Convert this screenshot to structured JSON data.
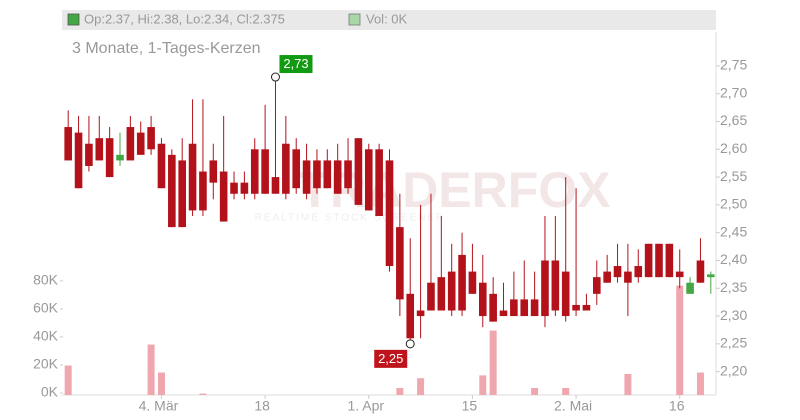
{
  "chart_data": {
    "type": "candlestick",
    "title": "3 Monate, 1-Tages-Kerzen",
    "legend_ohlc": "Op:2.37, Hi:2.38, Lo:2.34, Cl:2.375",
    "legend_volume": "Vol: 0K",
    "watermark": "TRADERFOX",
    "watermark_subtitle": "REALTIME STOCK SCREENER",
    "categories": [
      null,
      null,
      null,
      null,
      null,
      null,
      null,
      null,
      null,
      "4. Mär",
      null,
      null,
      null,
      null,
      null,
      null,
      null,
      null,
      null,
      "18",
      null,
      null,
      null,
      null,
      null,
      null,
      null,
      null,
      null,
      "1. Apr",
      null,
      null,
      null,
      null,
      null,
      null,
      null,
      null,
      null,
      "15",
      null,
      null,
      null,
      null,
      null,
      null,
      null,
      null,
      null,
      "2. Mai",
      null,
      null,
      null,
      null,
      null,
      null,
      null,
      null,
      null,
      "16",
      null,
      null,
      null
    ],
    "open": [
      2.64,
      2.63,
      2.61,
      2.62,
      2.62,
      2.58,
      2.64,
      2.63,
      2.64,
      2.61,
      2.59,
      2.58,
      2.61,
      2.56,
      2.58,
      2.56,
      2.54,
      2.54,
      2.6,
      2.6,
      2.55,
      2.61,
      2.6,
      2.58,
      2.58,
      2.58,
      2.58,
      2.58,
      2.62,
      2.6,
      2.6,
      2.58,
      2.46,
      2.34,
      2.31,
      2.36,
      2.37,
      2.38,
      2.41,
      2.38,
      2.36,
      2.34,
      2.31,
      2.33,
      2.33,
      2.33,
      2.4,
      2.4,
      2.38,
      2.32,
      2.32,
      2.37,
      2.38,
      2.39,
      2.38,
      2.39,
      2.43,
      2.43,
      2.43,
      2.38,
      2.34,
      2.4,
      2.37
    ],
    "high": [
      2.67,
      2.66,
      2.66,
      2.66,
      2.64,
      2.63,
      2.66,
      2.65,
      2.66,
      2.62,
      2.6,
      2.62,
      2.69,
      2.69,
      2.61,
      2.66,
      2.56,
      2.56,
      2.62,
      2.68,
      2.73,
      2.66,
      2.62,
      2.61,
      2.6,
      2.6,
      2.61,
      2.62,
      2.62,
      2.61,
      2.61,
      2.6,
      2.52,
      2.44,
      2.5,
      2.52,
      2.48,
      2.43,
      2.45,
      2.43,
      2.41,
      2.37,
      2.36,
      2.38,
      2.4,
      2.38,
      2.48,
      2.48,
      2.55,
      2.53,
      2.34,
      2.4,
      2.41,
      2.43,
      2.43,
      2.42,
      2.43,
      2.43,
      2.43,
      2.42,
      2.37,
      2.44,
      2.38
    ],
    "low": [
      2.58,
      2.53,
      2.56,
      2.58,
      2.55,
      2.57,
      2.58,
      2.59,
      2.59,
      2.53,
      2.46,
      2.46,
      2.48,
      2.48,
      2.51,
      2.47,
      2.51,
      2.51,
      2.51,
      2.52,
      2.52,
      2.51,
      2.52,
      2.51,
      2.52,
      2.53,
      2.52,
      2.52,
      2.5,
      2.49,
      2.48,
      2.38,
      2.3,
      2.25,
      2.26,
      2.31,
      2.31,
      2.3,
      2.3,
      2.34,
      2.28,
      2.29,
      2.3,
      2.3,
      2.3,
      2.3,
      2.28,
      2.3,
      2.29,
      2.3,
      2.31,
      2.32,
      2.36,
      2.36,
      2.3,
      2.36,
      2.37,
      2.37,
      2.37,
      2.35,
      2.34,
      2.36,
      2.34
    ],
    "close": [
      2.58,
      2.53,
      2.57,
      2.58,
      2.55,
      2.59,
      2.58,
      2.59,
      2.6,
      2.53,
      2.46,
      2.46,
      2.49,
      2.49,
      2.54,
      2.47,
      2.52,
      2.52,
      2.52,
      2.52,
      2.52,
      2.52,
      2.53,
      2.52,
      2.53,
      2.53,
      2.52,
      2.53,
      2.5,
      2.49,
      2.48,
      2.39,
      2.33,
      2.26,
      2.3,
      2.31,
      2.31,
      2.31,
      2.31,
      2.34,
      2.3,
      2.29,
      2.3,
      2.3,
      2.3,
      2.3,
      2.3,
      2.31,
      2.3,
      2.31,
      2.31,
      2.34,
      2.36,
      2.37,
      2.36,
      2.37,
      2.37,
      2.37,
      2.37,
      2.37,
      2.36,
      2.36,
      2.375
    ],
    "volume": [
      21000,
      0,
      0,
      0,
      0,
      0,
      0,
      0,
      36000,
      16000,
      0,
      0,
      0,
      1000,
      0,
      0,
      0,
      0,
      0,
      0,
      0,
      0,
      0,
      0,
      0,
      0,
      0,
      0,
      0,
      0,
      0,
      0,
      5000,
      0,
      12000,
      0,
      0,
      0,
      0,
      0,
      14000,
      46000,
      0,
      0,
      0,
      5000,
      0,
      0,
      5000,
      0,
      0,
      0,
      0,
      0,
      15000,
      0,
      0,
      0,
      0,
      78000,
      0,
      16000,
      0
    ],
    "up_color": "#43a843",
    "down_color": "#b3121b",
    "volume_up_color": "#a8d8a8",
    "volume_down_color": "#f0a6ae",
    "ylim": [
      2.158,
      2.811
    ],
    "yticks": [
      {
        "value": 2.2,
        "label": "2,20"
      },
      {
        "value": 2.25,
        "label": "2,25"
      },
      {
        "value": 2.3,
        "label": "2,30"
      },
      {
        "value": 2.35,
        "label": "2,35"
      },
      {
        "value": 2.4,
        "label": "2,40"
      },
      {
        "value": 2.45,
        "label": "2,45"
      },
      {
        "value": 2.5,
        "label": "2,50"
      },
      {
        "value": 2.55,
        "label": "2,55"
      },
      {
        "value": 2.6,
        "label": "2,60"
      },
      {
        "value": 2.65,
        "label": "2,65"
      },
      {
        "value": 2.7,
        "label": "2,70"
      },
      {
        "value": 2.75,
        "label": "2,75"
      }
    ],
    "y2lim": [
      0,
      259000
    ],
    "y2ticks": [
      {
        "value": 0,
        "label": "0K"
      },
      {
        "value": 20000,
        "label": "20K"
      },
      {
        "value": 40000,
        "label": "40K"
      },
      {
        "value": 60000,
        "label": "60K"
      },
      {
        "value": 80000,
        "label": "80K"
      }
    ],
    "annotations": [
      {
        "text": "2,73",
        "index": 20,
        "value": 2.73,
        "color": "#139a13",
        "side": "above"
      },
      {
        "text": "2,25",
        "index": 33,
        "value": 2.25,
        "color": "#c0141c",
        "side": "below"
      }
    ]
  }
}
